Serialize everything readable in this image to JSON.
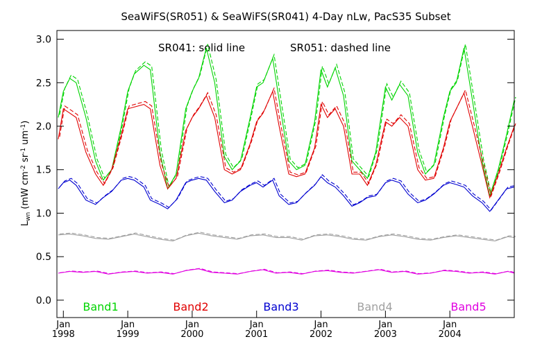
{
  "chart_data": {
    "type": "line",
    "title": "SeaWiFS(SR051) & SeaWiFS(SR041) 4-Day nLw, PacS35 Subset",
    "subtitle_solid": "SR041: solid line",
    "subtitle_dashed": "SR051: dashed line",
    "ylabel": "L_wn (mW cm^-2 sr^-1 um^-1)",
    "ylim": [
      -0.2,
      3.1
    ],
    "xlim": [
      1997.9,
      2005.0
    ],
    "yticks": [
      "0.0",
      "0.5",
      "1.0",
      "1.5",
      "2.0",
      "2.5",
      "3.0"
    ],
    "ytick_values": [
      0.0,
      0.5,
      1.0,
      1.5,
      2.0,
      2.5,
      3.0
    ],
    "xticks": [
      {
        "month": "Jan",
        "year": "1998",
        "x": 1998.0
      },
      {
        "month": "Jan",
        "year": "1999",
        "x": 1999.0
      },
      {
        "month": "Jan",
        "year": "2000",
        "x": 2000.0
      },
      {
        "month": "Jan",
        "year": "2001",
        "x": 2001.0
      },
      {
        "month": "Jan",
        "year": "2002",
        "x": 2002.0
      },
      {
        "month": "Jan",
        "year": "2003",
        "x": 2003.0
      },
      {
        "month": "Jan",
        "year": "2004",
        "x": 2004.0
      }
    ],
    "series": [
      {
        "name": "Band1",
        "color": "#00d400",
        "x": [
          1997.92,
          1998.0,
          1998.1,
          1998.2,
          1998.35,
          1998.5,
          1998.62,
          1998.75,
          1998.9,
          1999.0,
          1999.1,
          1999.25,
          1999.35,
          1999.5,
          1999.62,
          1999.75,
          1999.9,
          2000.0,
          2000.1,
          2000.22,
          2000.35,
          2000.5,
          2000.62,
          2000.75,
          2000.9,
          2001.0,
          2001.1,
          2001.25,
          2001.35,
          2001.5,
          2001.62,
          2001.75,
          2001.9,
          2002.0,
          2002.1,
          2002.22,
          2002.35,
          2002.48,
          2002.6,
          2002.72,
          2002.85,
          2003.0,
          2003.1,
          2003.22,
          2003.35,
          2003.5,
          2003.62,
          2003.75,
          2003.9,
          2004.0,
          2004.1,
          2004.22,
          2004.35,
          2004.5,
          2004.62,
          2004.75,
          2004.88,
          2005.0
        ],
        "values": [
          2.1,
          2.4,
          2.55,
          2.5,
          2.1,
          1.6,
          1.38,
          1.5,
          2.0,
          2.4,
          2.6,
          2.7,
          2.65,
          1.7,
          1.28,
          1.45,
          2.2,
          2.4,
          2.55,
          2.9,
          2.5,
          1.65,
          1.5,
          1.6,
          2.1,
          2.45,
          2.5,
          2.78,
          2.3,
          1.6,
          1.5,
          1.55,
          2.05,
          2.65,
          2.45,
          2.67,
          2.35,
          1.6,
          1.5,
          1.4,
          1.7,
          2.45,
          2.3,
          2.48,
          2.35,
          1.7,
          1.45,
          1.55,
          2.1,
          2.4,
          2.5,
          2.9,
          2.3,
          1.6,
          1.2,
          1.5,
          1.9,
          2.3
        ]
      },
      {
        "name": "Band2",
        "color": "#e00000",
        "x": [
          1997.92,
          1998.0,
          1998.1,
          1998.2,
          1998.35,
          1998.5,
          1998.62,
          1998.75,
          1998.9,
          1999.0,
          1999.1,
          1999.25,
          1999.35,
          1999.5,
          1999.62,
          1999.75,
          1999.9,
          2000.0,
          2000.1,
          2000.22,
          2000.35,
          2000.5,
          2000.62,
          2000.75,
          2000.9,
          2001.0,
          2001.1,
          2001.25,
          2001.35,
          2001.5,
          2001.62,
          2001.75,
          2001.9,
          2002.0,
          2002.1,
          2002.22,
          2002.35,
          2002.48,
          2002.6,
          2002.72,
          2002.85,
          2003.0,
          2003.1,
          2003.22,
          2003.35,
          2003.5,
          2003.62,
          2003.75,
          2003.9,
          2004.0,
          2004.1,
          2004.22,
          2004.35,
          2004.5,
          2004.62,
          2004.75,
          2004.88,
          2005.0
        ],
        "values": [
          1.85,
          2.2,
          2.15,
          2.1,
          1.7,
          1.45,
          1.32,
          1.5,
          1.9,
          2.2,
          2.22,
          2.25,
          2.2,
          1.55,
          1.28,
          1.4,
          1.95,
          2.1,
          2.2,
          2.35,
          2.1,
          1.5,
          1.45,
          1.5,
          1.8,
          2.05,
          2.15,
          2.4,
          2.0,
          1.45,
          1.42,
          1.45,
          1.75,
          2.25,
          2.1,
          2.2,
          2.0,
          1.45,
          1.45,
          1.32,
          1.55,
          2.05,
          2.0,
          2.1,
          2.0,
          1.5,
          1.38,
          1.4,
          1.75,
          2.05,
          2.2,
          2.38,
          2.0,
          1.55,
          1.18,
          1.45,
          1.75,
          2.0
        ]
      },
      {
        "name": "Band3",
        "color": "#0000d0",
        "x": [
          1997.92,
          1998.0,
          1998.1,
          1998.2,
          1998.35,
          1998.5,
          1998.62,
          1998.75,
          1998.9,
          1999.0,
          1999.1,
          1999.25,
          1999.35,
          1999.5,
          1999.62,
          1999.75,
          1999.9,
          2000.0,
          2000.1,
          2000.22,
          2000.35,
          2000.5,
          2000.62,
          2000.75,
          2000.9,
          2001.0,
          2001.1,
          2001.25,
          2001.35,
          2001.5,
          2001.62,
          2001.75,
          2001.9,
          2002.0,
          2002.1,
          2002.22,
          2002.35,
          2002.48,
          2002.6,
          2002.72,
          2002.85,
          2003.0,
          2003.1,
          2003.22,
          2003.35,
          2003.5,
          2003.62,
          2003.75,
          2003.9,
          2004.0,
          2004.1,
          2004.22,
          2004.35,
          2004.5,
          2004.62,
          2004.75,
          2004.88,
          2005.0
        ],
        "values": [
          1.28,
          1.35,
          1.38,
          1.32,
          1.15,
          1.1,
          1.18,
          1.25,
          1.38,
          1.4,
          1.38,
          1.3,
          1.15,
          1.1,
          1.05,
          1.15,
          1.35,
          1.38,
          1.4,
          1.38,
          1.25,
          1.12,
          1.15,
          1.25,
          1.32,
          1.35,
          1.3,
          1.38,
          1.2,
          1.1,
          1.12,
          1.22,
          1.32,
          1.42,
          1.35,
          1.3,
          1.2,
          1.08,
          1.12,
          1.18,
          1.2,
          1.35,
          1.38,
          1.35,
          1.22,
          1.12,
          1.15,
          1.22,
          1.32,
          1.35,
          1.33,
          1.3,
          1.2,
          1.12,
          1.02,
          1.15,
          1.28,
          1.3
        ]
      },
      {
        "name": "Band4",
        "color": "#a0a0a0",
        "x": [
          1997.92,
          1998.1,
          1998.3,
          1998.5,
          1998.7,
          1998.9,
          1999.1,
          1999.3,
          1999.5,
          1999.7,
          1999.9,
          2000.1,
          2000.3,
          2000.5,
          2000.7,
          2000.9,
          2001.1,
          2001.3,
          2001.5,
          2001.7,
          2001.9,
          2002.1,
          2002.3,
          2002.5,
          2002.7,
          2002.9,
          2003.1,
          2003.3,
          2003.5,
          2003.7,
          2003.9,
          2004.1,
          2004.3,
          2004.5,
          2004.7,
          2004.9,
          2005.0
        ],
        "values": [
          0.75,
          0.76,
          0.74,
          0.71,
          0.7,
          0.73,
          0.76,
          0.73,
          0.7,
          0.68,
          0.74,
          0.77,
          0.74,
          0.72,
          0.7,
          0.74,
          0.75,
          0.72,
          0.72,
          0.69,
          0.74,
          0.75,
          0.73,
          0.7,
          0.69,
          0.73,
          0.75,
          0.73,
          0.7,
          0.69,
          0.72,
          0.74,
          0.72,
          0.7,
          0.68,
          0.73,
          0.72
        ]
      },
      {
        "name": "Band5",
        "color": "#e000e0",
        "x": [
          1997.92,
          1998.1,
          1998.3,
          1998.5,
          1998.7,
          1998.9,
          1999.1,
          1999.3,
          1999.5,
          1999.7,
          1999.9,
          2000.1,
          2000.3,
          2000.5,
          2000.7,
          2000.9,
          2001.1,
          2001.3,
          2001.5,
          2001.7,
          2001.9,
          2002.1,
          2002.3,
          2002.5,
          2002.7,
          2002.9,
          2003.1,
          2003.3,
          2003.5,
          2003.7,
          2003.9,
          2004.1,
          2004.3,
          2004.5,
          2004.7,
          2004.9,
          2005.0
        ],
        "values": [
          0.31,
          0.33,
          0.32,
          0.33,
          0.3,
          0.32,
          0.33,
          0.31,
          0.32,
          0.3,
          0.34,
          0.36,
          0.32,
          0.31,
          0.3,
          0.33,
          0.35,
          0.31,
          0.32,
          0.3,
          0.33,
          0.34,
          0.32,
          0.31,
          0.33,
          0.35,
          0.32,
          0.33,
          0.3,
          0.31,
          0.34,
          0.33,
          0.31,
          0.32,
          0.3,
          0.33,
          0.31
        ]
      }
    ]
  }
}
